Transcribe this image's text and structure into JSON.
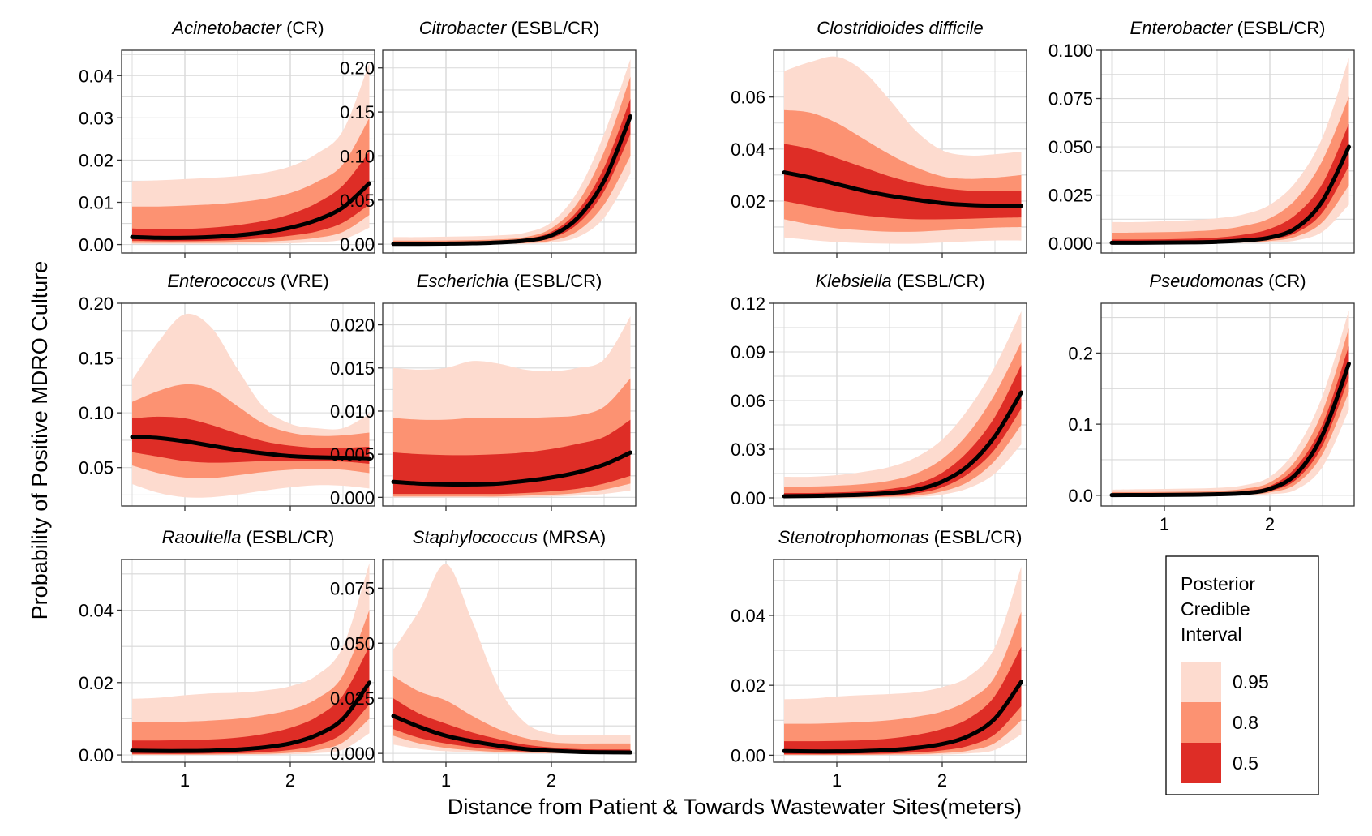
{
  "chart_data": {
    "type": "area",
    "xlabel": "Distance from Patient & Towards Wastewater Sites(meters)",
    "ylabel": "Probability of Positive MDRO Culture",
    "legend": {
      "title_lines": [
        "Posterior",
        "Credible",
        "Interval"
      ],
      "entries": [
        {
          "label": "0.95",
          "color": "#fddbcf"
        },
        {
          "label": "0.8",
          "color": "#fc9272"
        },
        {
          "label": "0.5",
          "color": "#de2d26"
        }
      ],
      "placement": "bottom-right"
    },
    "colors": {
      "median": "#000000",
      "band95": "#fddbcf",
      "band80": "#fc9272",
      "band50": "#de2d26",
      "grid": "#d9d9d9"
    },
    "x_domain": [
      0.4,
      2.8
    ],
    "x_ticks": [
      1,
      2
    ],
    "x": [
      0.5,
      0.75,
      1.0,
      1.25,
      1.5,
      1.75,
      2.0,
      2.25,
      2.5,
      2.75
    ],
    "panels": [
      {
        "title_genus": "Acinetobacter",
        "title_suffix": "(CR)",
        "ylim": [
          -0.002,
          0.046
        ],
        "yticks": [
          "0.00",
          "0.01",
          "0.02",
          "0.03",
          "0.04"
        ],
        "median": [
          0.0018,
          0.0016,
          0.0016,
          0.0018,
          0.0022,
          0.0029,
          0.004,
          0.0058,
          0.0088,
          0.0145
        ],
        "lo95": [
          0.0001,
          0.0001,
          0.0001,
          0.0001,
          0.0001,
          0.0002,
          0.0003,
          0.0006,
          0.0012,
          0.004
        ],
        "hi95": [
          0.015,
          0.0152,
          0.0155,
          0.0158,
          0.0162,
          0.017,
          0.0185,
          0.0215,
          0.027,
          0.043
        ],
        "lo80": [
          0.0004,
          0.0004,
          0.0004,
          0.0004,
          0.0005,
          0.0007,
          0.001,
          0.0016,
          0.003,
          0.007
        ],
        "hi80": [
          0.009,
          0.009,
          0.0092,
          0.0095,
          0.01,
          0.0108,
          0.0122,
          0.0148,
          0.019,
          0.03
        ],
        "lo50": [
          0.0009,
          0.0008,
          0.0008,
          0.0009,
          0.0011,
          0.0015,
          0.0021,
          0.0031,
          0.0052,
          0.0095
        ],
        "hi50": [
          0.0038,
          0.0036,
          0.0037,
          0.004,
          0.0046,
          0.0056,
          0.0072,
          0.0098,
          0.014,
          0.022
        ]
      },
      {
        "title_genus": "Citrobacter",
        "title_suffix": "(ESBL/CR)",
        "ylim": [
          -0.01,
          0.22
        ],
        "yticks": [
          "0.00",
          "0.05",
          "0.10",
          "0.15",
          "0.20"
        ],
        "median": [
          0.0003,
          0.0004,
          0.0006,
          0.001,
          0.002,
          0.004,
          0.01,
          0.03,
          0.072,
          0.145
        ],
        "lo95": [
          0.0,
          0.0,
          0.0,
          0.0001,
          0.0002,
          0.0005,
          0.002,
          0.008,
          0.03,
          0.08
        ],
        "hi95": [
          0.008,
          0.008,
          0.0085,
          0.009,
          0.01,
          0.013,
          0.025,
          0.06,
          0.125,
          0.21
        ],
        "lo80": [
          0.0,
          0.0001,
          0.0001,
          0.0002,
          0.0005,
          0.0012,
          0.004,
          0.015,
          0.045,
          0.1
        ],
        "hi80": [
          0.004,
          0.004,
          0.0042,
          0.0046,
          0.0055,
          0.008,
          0.018,
          0.047,
          0.105,
          0.19
        ],
        "lo50": [
          0.0001,
          0.0002,
          0.0003,
          0.0005,
          0.001,
          0.0025,
          0.007,
          0.023,
          0.06,
          0.125
        ],
        "hi50": [
          0.0015,
          0.0016,
          0.0018,
          0.0022,
          0.0035,
          0.006,
          0.014,
          0.038,
          0.087,
          0.165
        ]
      },
      {
        "title_genus": "Clostridioides difficile",
        "title_suffix": "",
        "ylim": [
          0.0,
          0.078
        ],
        "yticks": [
          "0.02",
          "0.04",
          "0.06"
        ],
        "median": [
          0.031,
          0.029,
          0.0265,
          0.024,
          0.022,
          0.0205,
          0.0192,
          0.0185,
          0.0182,
          0.0182
        ],
        "lo95": [
          0.006,
          0.005,
          0.0042,
          0.0038,
          0.0036,
          0.0036,
          0.004,
          0.0045,
          0.0048,
          0.0048
        ],
        "hi95": [
          0.07,
          0.0735,
          0.0755,
          0.07,
          0.059,
          0.047,
          0.0395,
          0.0375,
          0.038,
          0.039
        ],
        "lo80": [
          0.013,
          0.011,
          0.0095,
          0.0087,
          0.0082,
          0.0082,
          0.0087,
          0.0093,
          0.0098,
          0.01
        ],
        "hi80": [
          0.055,
          0.054,
          0.05,
          0.044,
          0.038,
          0.033,
          0.0295,
          0.0285,
          0.029,
          0.03
        ],
        "lo50": [
          0.02,
          0.018,
          0.016,
          0.0145,
          0.0135,
          0.013,
          0.013,
          0.0132,
          0.0135,
          0.0137
        ],
        "hi50": [
          0.042,
          0.04,
          0.0365,
          0.033,
          0.0295,
          0.0268,
          0.025,
          0.024,
          0.0238,
          0.024
        ]
      },
      {
        "title_genus": "Enterobacter",
        "title_suffix": "(ESBL/CR)",
        "ylim": [
          -0.005,
          0.1
        ],
        "yticks": [
          "0.000",
          "0.025",
          "0.050",
          "0.075",
          "0.100"
        ],
        "median": [
          0.0003,
          0.0003,
          0.0004,
          0.0005,
          0.0008,
          0.0015,
          0.003,
          0.008,
          0.022,
          0.05
        ],
        "lo95": [
          0.0,
          0.0,
          0.0,
          0.0001,
          0.0001,
          0.0002,
          0.0005,
          0.0015,
          0.006,
          0.02
        ],
        "hi95": [
          0.011,
          0.011,
          0.0115,
          0.012,
          0.013,
          0.015,
          0.02,
          0.032,
          0.055,
          0.096
        ],
        "lo80": [
          0.0001,
          0.0001,
          0.0001,
          0.0002,
          0.0003,
          0.0005,
          0.0012,
          0.0035,
          0.011,
          0.03
        ],
        "hi80": [
          0.0055,
          0.0056,
          0.0058,
          0.0062,
          0.007,
          0.009,
          0.013,
          0.023,
          0.043,
          0.076
        ],
        "lo50": [
          0.0002,
          0.0002,
          0.0002,
          0.0003,
          0.0005,
          0.0009,
          0.002,
          0.0055,
          0.016,
          0.04
        ],
        "hi50": [
          0.002,
          0.002,
          0.0021,
          0.0024,
          0.003,
          0.0045,
          0.0075,
          0.015,
          0.031,
          0.062
        ]
      },
      {
        "title_genus": "Enterococcus",
        "title_suffix": "(VRE)",
        "ylim": [
          0.015,
          0.2
        ],
        "yticks": [
          "0.05",
          "0.10",
          "0.15",
          "0.20"
        ],
        "median": [
          0.078,
          0.077,
          0.074,
          0.07,
          0.066,
          0.063,
          0.0605,
          0.0595,
          0.059,
          0.0585
        ],
        "lo95": [
          0.035,
          0.027,
          0.023,
          0.023,
          0.0255,
          0.029,
          0.032,
          0.034,
          0.0335,
          0.031
        ],
        "hi95": [
          0.13,
          0.165,
          0.19,
          0.178,
          0.14,
          0.105,
          0.09,
          0.086,
          0.086,
          0.099
        ],
        "lo80": [
          0.052,
          0.045,
          0.041,
          0.0405,
          0.043,
          0.046,
          0.048,
          0.049,
          0.048,
          0.045
        ],
        "hi80": [
          0.11,
          0.12,
          0.126,
          0.122,
          0.106,
          0.09,
          0.082,
          0.079,
          0.0795,
          0.082
        ],
        "lo50": [
          0.064,
          0.06,
          0.056,
          0.0545,
          0.055,
          0.056,
          0.056,
          0.056,
          0.0555,
          0.0535
        ],
        "hi50": [
          0.095,
          0.0965,
          0.095,
          0.089,
          0.081,
          0.074,
          0.07,
          0.068,
          0.068,
          0.069
        ]
      },
      {
        "title_genus": "Escherichi",
        "title_suffix": "a (ESBL/CR)",
        "ylim": [
          -0.001,
          0.0225
        ],
        "yticks": [
          "0.000",
          "0.005",
          "0.010",
          "0.015",
          "0.020"
        ],
        "median": [
          0.0018,
          0.0016,
          0.0015,
          0.0015,
          0.0016,
          0.0019,
          0.0023,
          0.0029,
          0.0038,
          0.0052
        ],
        "lo95": [
          0.0,
          0.0,
          0.0,
          0.0,
          0.0,
          0.0,
          0.0001,
          0.0002,
          0.0004,
          0.0008
        ],
        "hi95": [
          0.015,
          0.0148,
          0.015,
          0.0158,
          0.0155,
          0.0148,
          0.0146,
          0.015,
          0.016,
          0.021
        ],
        "lo80": [
          0.0001,
          0.0001,
          0.0001,
          0.0001,
          0.0001,
          0.0002,
          0.0003,
          0.0005,
          0.0009,
          0.0016
        ],
        "hi80": [
          0.0092,
          0.009,
          0.009,
          0.0092,
          0.0092,
          0.0092,
          0.0093,
          0.0095,
          0.0105,
          0.0138
        ],
        "lo50": [
          0.0004,
          0.0004,
          0.0004,
          0.0004,
          0.0004,
          0.0005,
          0.0007,
          0.001,
          0.0016,
          0.0025
        ],
        "hi50": [
          0.0052,
          0.005,
          0.0049,
          0.0049,
          0.005,
          0.0052,
          0.0056,
          0.0062,
          0.007,
          0.009
        ]
      },
      {
        "title_genus": "Klebsiella",
        "title_suffix": "(ESBL/CR)",
        "ylim": [
          -0.005,
          0.12
        ],
        "yticks": [
          "0.00",
          "0.03",
          "0.06",
          "0.09",
          "0.12"
        ],
        "median": [
          0.001,
          0.0012,
          0.0015,
          0.002,
          0.003,
          0.005,
          0.01,
          0.02,
          0.038,
          0.065
        ],
        "lo95": [
          0.0,
          0.0,
          0.0001,
          0.0001,
          0.0002,
          0.0005,
          0.002,
          0.006,
          0.015,
          0.033
        ],
        "hi95": [
          0.013,
          0.013,
          0.014,
          0.016,
          0.019,
          0.025,
          0.036,
          0.055,
          0.081,
          0.115
        ],
        "lo80": [
          0.0001,
          0.0001,
          0.0002,
          0.0004,
          0.0007,
          0.0015,
          0.004,
          0.01,
          0.023,
          0.045
        ],
        "hi80": [
          0.007,
          0.007,
          0.0075,
          0.0085,
          0.0105,
          0.015,
          0.024,
          0.04,
          0.064,
          0.096
        ],
        "lo50": [
          0.0003,
          0.0004,
          0.0005,
          0.0008,
          0.0013,
          0.0027,
          0.0065,
          0.015,
          0.03,
          0.055
        ],
        "hi50": [
          0.003,
          0.003,
          0.0034,
          0.004,
          0.0055,
          0.0085,
          0.0155,
          0.029,
          0.05,
          0.082
        ]
      },
      {
        "title_genus": "Pseudomonas",
        "title_suffix": "(CR)",
        "ylim": [
          -0.015,
          0.27
        ],
        "yticks": [
          "0.0",
          "0.1",
          "0.2"
        ],
        "median": [
          0.0003,
          0.0004,
          0.0005,
          0.0008,
          0.0015,
          0.003,
          0.009,
          0.03,
          0.085,
          0.185
        ],
        "lo95": [
          0.0,
          0.0,
          0.0,
          0.0001,
          0.0002,
          0.0004,
          0.0015,
          0.008,
          0.04,
          0.12
        ],
        "hi95": [
          0.008,
          0.0085,
          0.009,
          0.0095,
          0.0105,
          0.014,
          0.026,
          0.065,
          0.14,
          0.26
        ],
        "lo80": [
          0.0,
          0.0001,
          0.0001,
          0.0002,
          0.0004,
          0.001,
          0.004,
          0.016,
          0.058,
          0.145
        ],
        "hi80": [
          0.0045,
          0.0045,
          0.0048,
          0.0052,
          0.006,
          0.009,
          0.018,
          0.05,
          0.118,
          0.235
        ],
        "lo50": [
          0.0001,
          0.0002,
          0.0002,
          0.0004,
          0.0008,
          0.0018,
          0.006,
          0.022,
          0.07,
          0.165
        ],
        "hi50": [
          0.0015,
          0.0016,
          0.0018,
          0.0022,
          0.0032,
          0.006,
          0.013,
          0.04,
          0.1,
          0.21
        ]
      },
      {
        "title_genus": "Raoultella",
        "title_suffix": "(ESBL/CR)",
        "ylim": [
          -0.002,
          0.054
        ],
        "yticks": [
          "0.00",
          "0.02",
          "0.04"
        ],
        "median": [
          0.0012,
          0.0011,
          0.0011,
          0.0012,
          0.0015,
          0.0021,
          0.0032,
          0.0055,
          0.01,
          0.02
        ],
        "lo95": [
          0.0,
          0.0,
          0.0,
          0.0,
          0.0001,
          0.0001,
          0.0002,
          0.0005,
          0.0015,
          0.006
        ],
        "hi95": [
          0.0155,
          0.0158,
          0.0165,
          0.017,
          0.0172,
          0.0178,
          0.019,
          0.022,
          0.03,
          0.053
        ],
        "lo80": [
          0.0001,
          0.0001,
          0.0001,
          0.0001,
          0.0002,
          0.0003,
          0.0006,
          0.0013,
          0.0035,
          0.01
        ],
        "hi80": [
          0.009,
          0.009,
          0.0092,
          0.0095,
          0.01,
          0.011,
          0.0125,
          0.0155,
          0.022,
          0.04
        ],
        "lo50": [
          0.0003,
          0.0003,
          0.0003,
          0.0004,
          0.0005,
          0.0008,
          0.0014,
          0.0027,
          0.006,
          0.014
        ],
        "hi50": [
          0.004,
          0.004,
          0.0041,
          0.0043,
          0.0048,
          0.0058,
          0.0075,
          0.0105,
          0.0165,
          0.03
        ]
      },
      {
        "title_genus": "Staphylococcus",
        "title_suffix": "(MRSA)",
        "ylim": [
          -0.004,
          0.088
        ],
        "yticks": [
          "0.000",
          "0.025",
          "0.050",
          "0.075"
        ],
        "median": [
          0.017,
          0.012,
          0.008,
          0.0055,
          0.0035,
          0.002,
          0.0012,
          0.0007,
          0.0005,
          0.0004
        ],
        "lo95": [
          0.004,
          0.002,
          0.001,
          0.0005,
          0.0002,
          0.0001,
          0.0,
          0.0,
          0.0,
          0.0
        ],
        "hi95": [
          0.047,
          0.065,
          0.086,
          0.06,
          0.03,
          0.014,
          0.009,
          0.0085,
          0.0085,
          0.0085
        ],
        "lo80": [
          0.008,
          0.0045,
          0.0025,
          0.0014,
          0.0007,
          0.0003,
          0.0002,
          0.0001,
          0.0001,
          0.0001
        ],
        "hi80": [
          0.035,
          0.028,
          0.024,
          0.017,
          0.011,
          0.007,
          0.005,
          0.0045,
          0.0045,
          0.0045
        ],
        "lo50": [
          0.011,
          0.007,
          0.0045,
          0.0028,
          0.0016,
          0.0009,
          0.0005,
          0.0003,
          0.0002,
          0.0002
        ],
        "hi50": [
          0.025,
          0.018,
          0.0135,
          0.0095,
          0.0065,
          0.004,
          0.0027,
          0.002,
          0.0018,
          0.0018
        ]
      },
      {
        "title_genus": "Stenotrophomonas",
        "title_suffix": "(ESBL/CR)",
        "ylim": [
          -0.002,
          0.056
        ],
        "yticks": [
          "0.00",
          "0.02",
          "0.04"
        ],
        "median": [
          0.0012,
          0.0011,
          0.0011,
          0.0012,
          0.0015,
          0.0021,
          0.0032,
          0.0055,
          0.0105,
          0.021
        ],
        "lo95": [
          0.0,
          0.0,
          0.0,
          0.0,
          0.0001,
          0.0001,
          0.0002,
          0.0005,
          0.0015,
          0.006
        ],
        "hi95": [
          0.016,
          0.0162,
          0.0168,
          0.0172,
          0.0175,
          0.018,
          0.0195,
          0.0225,
          0.031,
          0.054
        ],
        "lo80": [
          0.0001,
          0.0001,
          0.0001,
          0.0001,
          0.0002,
          0.0003,
          0.0006,
          0.0013,
          0.0035,
          0.01
        ],
        "hi80": [
          0.009,
          0.009,
          0.0092,
          0.0095,
          0.01,
          0.011,
          0.0125,
          0.0158,
          0.0225,
          0.041
        ],
        "lo50": [
          0.0003,
          0.0003,
          0.0003,
          0.0004,
          0.0005,
          0.0008,
          0.0014,
          0.0027,
          0.006,
          0.014
        ],
        "hi50": [
          0.004,
          0.004,
          0.0041,
          0.0043,
          0.0048,
          0.0058,
          0.0075,
          0.0105,
          0.017,
          0.031
        ]
      }
    ]
  }
}
